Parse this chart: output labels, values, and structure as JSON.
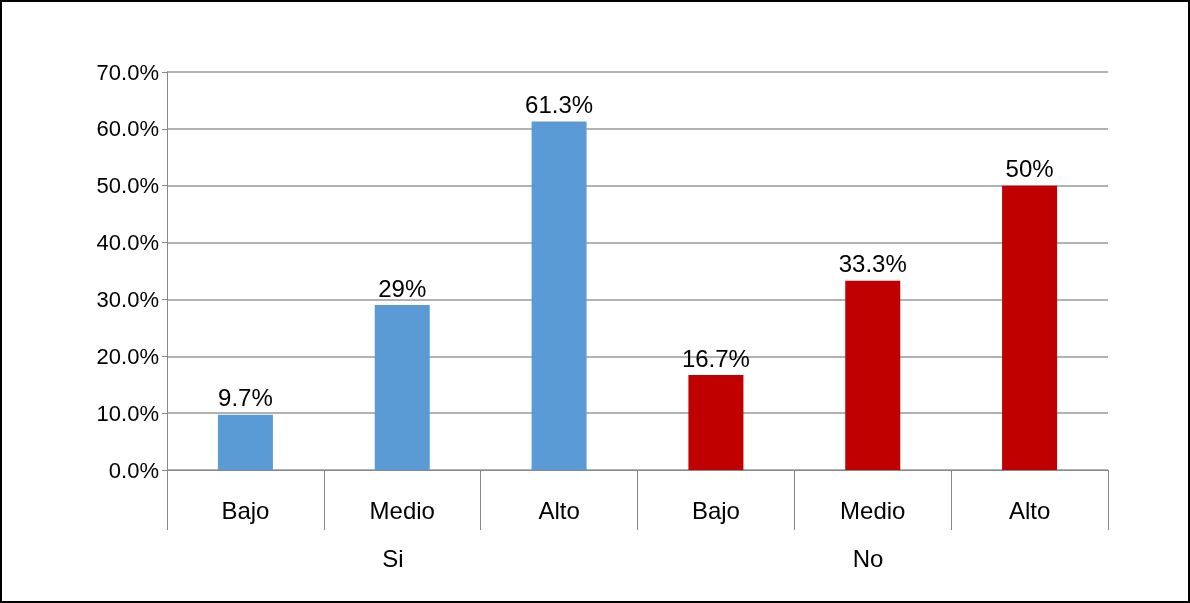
{
  "chart_data": {
    "type": "bar",
    "categories": [
      "Bajo",
      "Medio",
      "Alto",
      "Bajo",
      "Medio",
      "Alto"
    ],
    "values": [
      9.7,
      29,
      61.3,
      16.7,
      33.3,
      50
    ],
    "value_labels": [
      "9.7%",
      "29%",
      "61.3%",
      "16.7%",
      "33.3%",
      "50%"
    ],
    "colors": [
      "#5b9bd5",
      "#5b9bd5",
      "#5b9bd5",
      "#c00000",
      "#c00000",
      "#c00000"
    ],
    "ylim": [
      0,
      70
    ],
    "yticks": [
      {
        "value": 0,
        "label": "0.0%"
      },
      {
        "value": 10,
        "label": "10.0%"
      },
      {
        "value": 20,
        "label": "20.0%"
      },
      {
        "value": 30,
        "label": "30.0%"
      },
      {
        "value": 40,
        "label": "40.0%"
      },
      {
        "value": 50,
        "label": "50.0%"
      },
      {
        "value": 60,
        "label": "60.0%"
      },
      {
        "value": 70,
        "label": "70.0%"
      }
    ],
    "annotations": [
      "Si",
      "No"
    ],
    "grid": "y"
  }
}
